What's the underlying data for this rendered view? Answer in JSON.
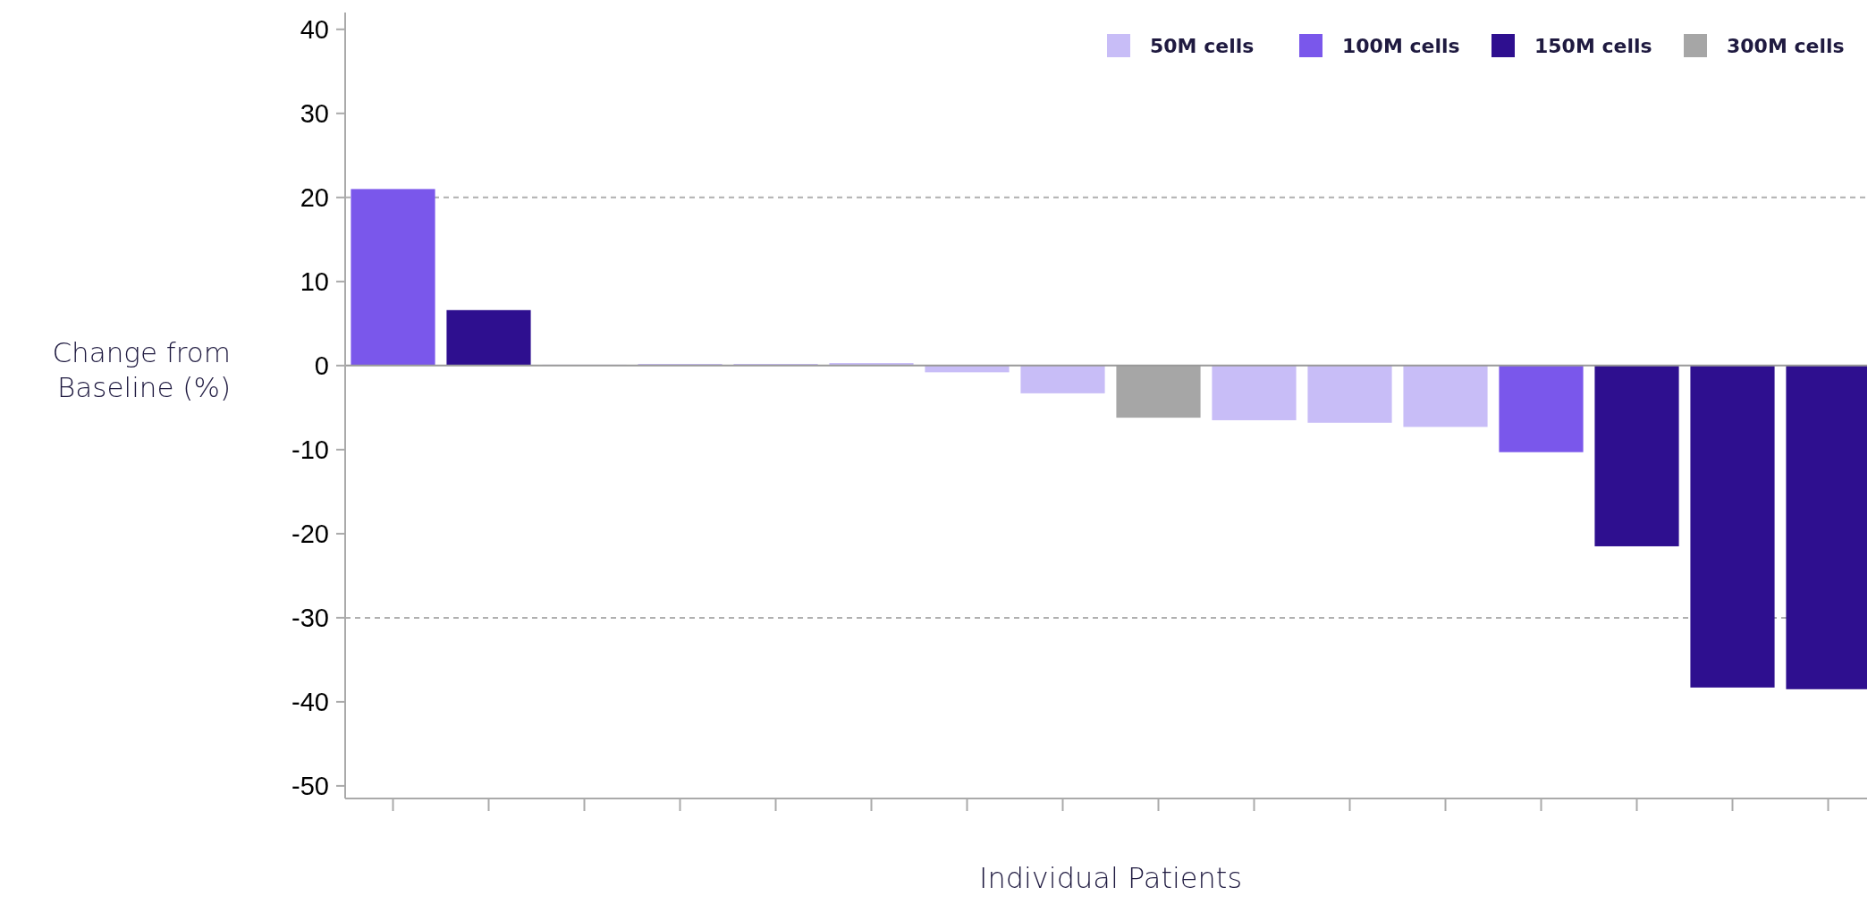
{
  "chart_data": {
    "type": "bar",
    "stacked": true,
    "xlabel": "Individual Patients",
    "ylabel": "Change from Baseline (%)",
    "categories": [
      null,
      null,
      null,
      null,
      null,
      null,
      null,
      null,
      null,
      null,
      null,
      null,
      null,
      null,
      null,
      null
    ],
    "series": [
      {
        "name": "50M cells",
        "color": "#c8bdf7",
        "values": [
          null,
          null,
          0.1,
          0.2,
          0.2,
          0.3,
          -0.8,
          -3.3,
          null,
          -6.5,
          -6.8,
          -7.3,
          null,
          null,
          null,
          null
        ]
      },
      {
        "name": "100M cells",
        "color": "#7a57eb",
        "values": [
          21,
          null,
          null,
          null,
          null,
          null,
          null,
          null,
          null,
          null,
          null,
          null,
          -10.3,
          null,
          null,
          null
        ]
      },
      {
        "name": "150M cells",
        "color": "#2e0f8f",
        "values": [
          null,
          6.6,
          null,
          null,
          null,
          null,
          null,
          null,
          null,
          null,
          null,
          null,
          null,
          -21.5,
          -38.3,
          -38.5
        ]
      },
      {
        "name": "300M cells",
        "color": "#a6a6a6",
        "values": [
          null,
          null,
          null,
          null,
          null,
          null,
          null,
          null,
          -6.2,
          null,
          null,
          null,
          null,
          null,
          null,
          null
        ]
      }
    ],
    "ylim": [
      -51.5,
      42
    ],
    "yticks": [
      -50,
      -40,
      -30,
      -20,
      -10,
      0,
      10,
      20,
      30,
      40
    ],
    "ref_lines": [
      {
        "axis": "y",
        "value": 20,
        "color": "#b0b0b0",
        "line_style": "dashed"
      },
      {
        "axis": "y",
        "value": -30,
        "color": "#b0b0b0",
        "line_style": "dashed"
      }
    ],
    "legend": "top right",
    "grid": false
  }
}
